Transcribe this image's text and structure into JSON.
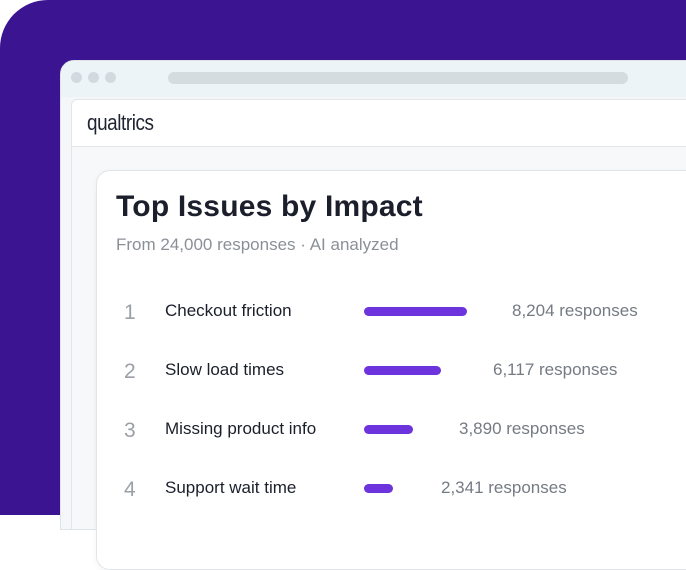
{
  "app": {
    "logo": "qualtrics"
  },
  "widget": {
    "title": "Top Issues by Impact",
    "subtitle": "From 24,000 responses · AI analyzed",
    "bar_color": "#6d33dc",
    "issues": [
      {
        "rank": "1",
        "label": "Checkout friction",
        "count": 8204,
        "count_label": "8,204 responses"
      },
      {
        "rank": "2",
        "label": "Slow load times",
        "count": 6117,
        "count_label": "6,117 responses"
      },
      {
        "rank": "3",
        "label": "Missing product info",
        "count": 3890,
        "count_label": "3,890 responses"
      },
      {
        "rank": "4",
        "label": "Support wait time",
        "count": 2341,
        "count_label": "2,341 responses"
      }
    ]
  }
}
